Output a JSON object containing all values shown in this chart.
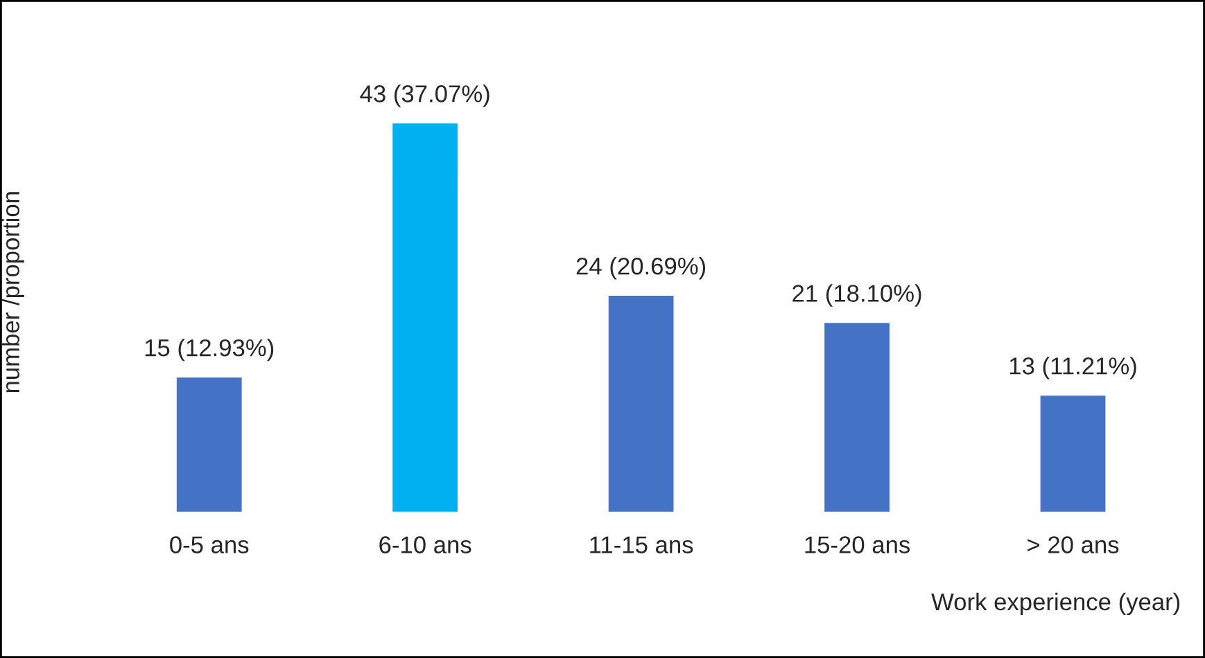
{
  "chart_data": {
    "type": "bar",
    "xlabel": "Work experience (year)",
    "ylabel": "number /proportion",
    "categories": [
      "0-5 ans",
      "6-10 ans",
      "11-15 ans",
      "15-20 ans",
      "> 20 ans"
    ],
    "values": [
      15,
      43,
      24,
      21,
      13
    ],
    "colors": [
      "#4472c4",
      "#00b0f0",
      "#4472c4",
      "#4472c4",
      "#4472c4"
    ],
    "value_labels": [
      "15 (12.93%)",
      "43 (37.07%)",
      "24 (20.69%)",
      "21 (18.10%)",
      "13 (11.21%)"
    ],
    "tick_labels": "x",
    "grid": false,
    "legend": false
  }
}
